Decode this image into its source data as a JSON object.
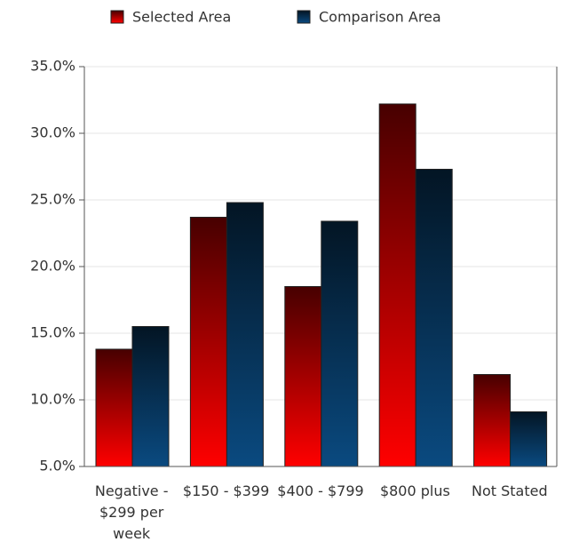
{
  "chart_data": {
    "type": "bar",
    "categories": [
      "Negative - $299 per week",
      "$150 - $399",
      "$400 - $799",
      "$800 plus",
      "Not Stated"
    ],
    "series": [
      {
        "name": "Selected Area",
        "color": "#ff0000",
        "values": [
          13.8,
          23.7,
          18.5,
          32.2,
          11.9
        ]
      },
      {
        "name": "Comparison Area",
        "color": "#0a4a80",
        "values": [
          15.5,
          24.8,
          23.4,
          27.3,
          9.1
        ]
      }
    ],
    "ylim": [
      5,
      35
    ],
    "yticks": [
      {
        "value": 5,
        "label": "5.0%"
      },
      {
        "value": 10,
        "label": "10.0%"
      },
      {
        "value": 15,
        "label": "15.0%"
      },
      {
        "value": 20,
        "label": "20.0%"
      },
      {
        "value": 25,
        "label": "25.0%"
      },
      {
        "value": 30,
        "label": "30.0%"
      },
      {
        "value": 35,
        "label": "35.0%"
      }
    ],
    "grid": true
  }
}
